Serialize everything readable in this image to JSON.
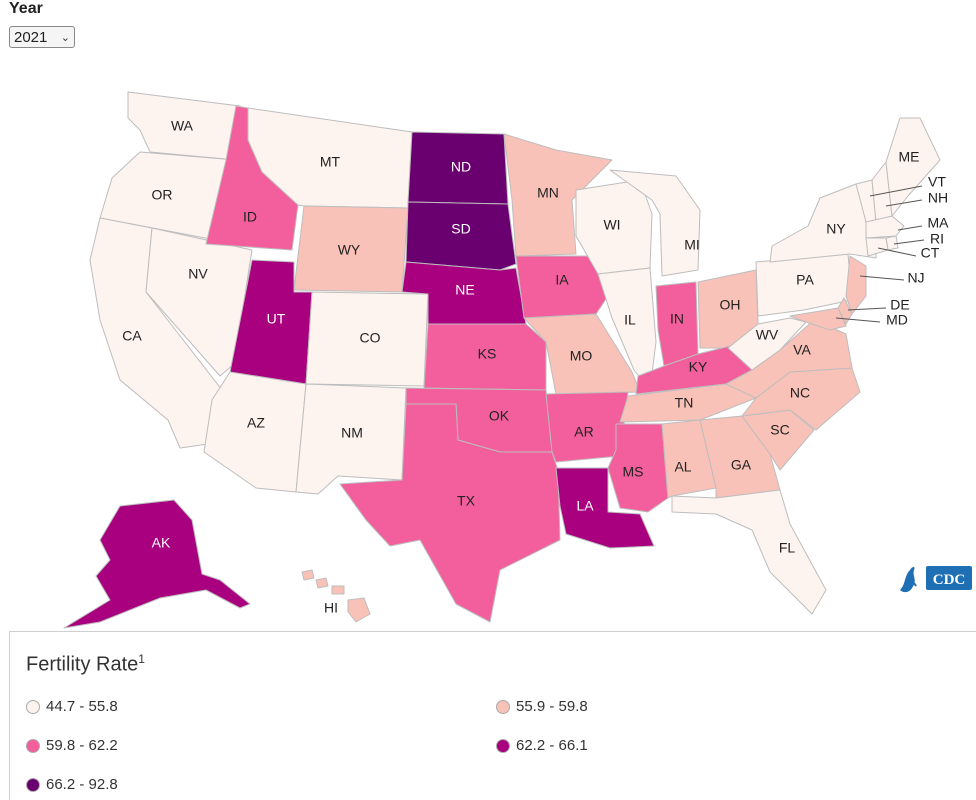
{
  "year_selector": {
    "label": "Year",
    "selected": "2021"
  },
  "legend": {
    "title": "Fertility Rate",
    "footnote": "1",
    "bins": [
      {
        "range": "44.7 - 55.8",
        "color": "#fdf3ef"
      },
      {
        "range": "55.9 - 59.8",
        "color": "#f9c2b8"
      },
      {
        "range": "59.8 - 62.2",
        "color": "#f25f9c"
      },
      {
        "range": "62.2 - 66.1",
        "color": "#a8007f"
      },
      {
        "range": "66.2 - 92.8",
        "color": "#6a006f"
      }
    ]
  },
  "states": {
    "WA": 0,
    "OR": 0,
    "CA": 0,
    "NV": 0,
    "ID": 2,
    "MT": 0,
    "WY": 1,
    "UT": 3,
    "AZ": 0,
    "CO": 0,
    "NM": 0,
    "ND": 4,
    "SD": 4,
    "NE": 3,
    "KS": 2,
    "OK": 2,
    "TX": 2,
    "MN": 1,
    "IA": 2,
    "MO": 1,
    "AR": 2,
    "LA": 3,
    "WI": 0,
    "IL": 0,
    "MI": 0,
    "IN": 2,
    "OH": 1,
    "KY": 2,
    "TN": 1,
    "MS": 2,
    "AL": 1,
    "GA": 1,
    "FL": 0,
    "SC": 1,
    "NC": 1,
    "VA": 1,
    "WV": 0,
    "PA": 0,
    "NY": 0,
    "ME": 0,
    "VT": 0,
    "NH": 0,
    "MA": 0,
    "RI": 0,
    "CT": 0,
    "NJ": 1,
    "DE": 1,
    "MD": 1,
    "AK": 3,
    "HI": 1
  },
  "source_logo": "CDC"
}
